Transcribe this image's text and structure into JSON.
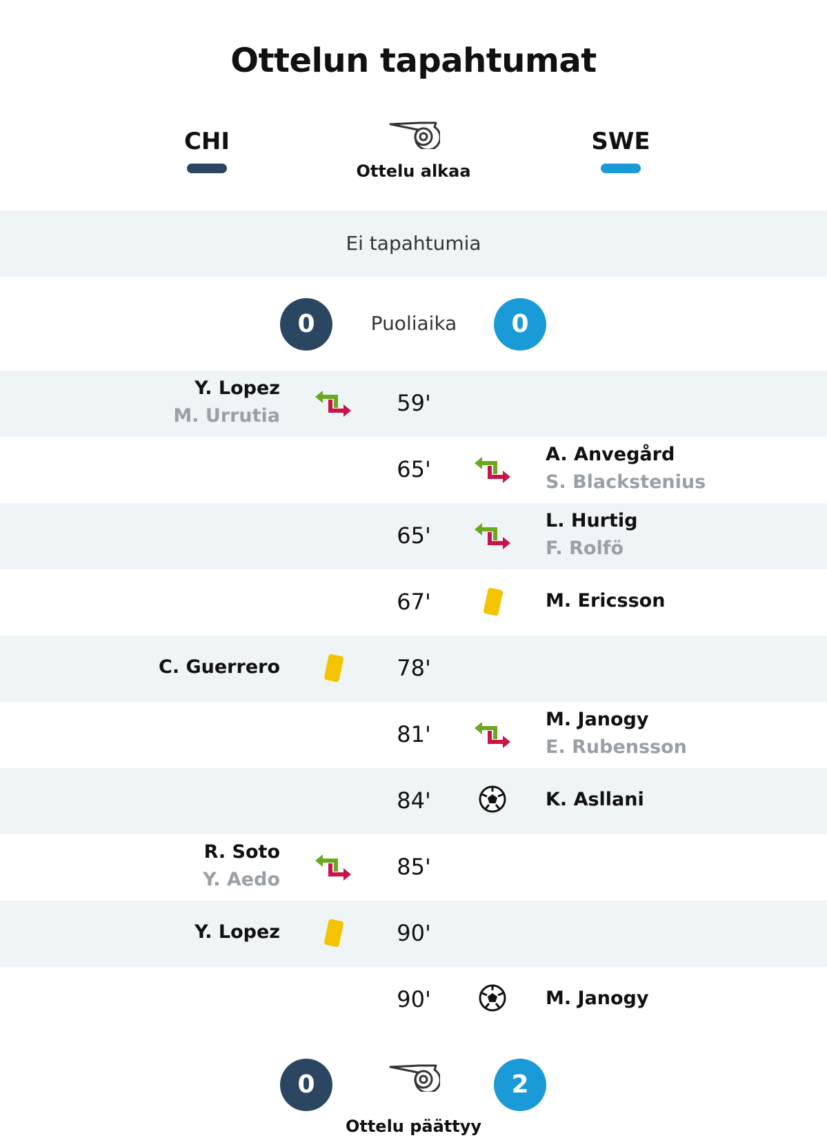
{
  "title": "Ottelun tapahtumat",
  "teams": {
    "home": {
      "abbr": "CHI",
      "color": "#2b4661"
    },
    "away": {
      "abbr": "SWE",
      "color": "#1a9bd7"
    }
  },
  "match_start_label": "Ottelu alkaa",
  "first_half": {
    "no_events_label": "Ei tapahtumia"
  },
  "halftime": {
    "label": "Puoliaika",
    "home_score": "0",
    "away_score": "0"
  },
  "events": [
    {
      "minute": "59'",
      "side": "home",
      "type": "substitution",
      "player_in": "Y. Lopez",
      "player_out": "M. Urrutia"
    },
    {
      "minute": "65'",
      "side": "away",
      "type": "substitution",
      "player_in": "A. Anvegård",
      "player_out": "S. Blackstenius"
    },
    {
      "minute": "65'",
      "side": "away",
      "type": "substitution",
      "player_in": "L. Hurtig",
      "player_out": "F. Rolfö"
    },
    {
      "minute": "67'",
      "side": "away",
      "type": "yellow-card",
      "player": "M. Ericsson"
    },
    {
      "minute": "78'",
      "side": "home",
      "type": "yellow-card",
      "player": "C. Guerrero"
    },
    {
      "minute": "81'",
      "side": "away",
      "type": "substitution",
      "player_in": "M. Janogy",
      "player_out": "E. Rubensson"
    },
    {
      "minute": "84'",
      "side": "away",
      "type": "goal",
      "player": "K. Asllani"
    },
    {
      "minute": "85'",
      "side": "home",
      "type": "substitution",
      "player_in": "R. Soto",
      "player_out": "Y. Aedo"
    },
    {
      "minute": "90'",
      "side": "home",
      "type": "yellow-card",
      "player": "Y. Lopez"
    },
    {
      "minute": "90'",
      "side": "away",
      "type": "goal",
      "player": "M. Janogy"
    }
  ],
  "fulltime": {
    "label": "Ottelu päättyy",
    "home_score": "0",
    "away_score": "2"
  },
  "icons": {
    "whistle": "whistle-icon",
    "substitution": "substitution-arrows-icon",
    "yellow_card": "yellow-card-icon",
    "goal": "soccer-ball-icon"
  },
  "colors": {
    "sub_in": "#6aa91f",
    "sub_out": "#c8144b",
    "yellow_card": "#f5c400"
  }
}
